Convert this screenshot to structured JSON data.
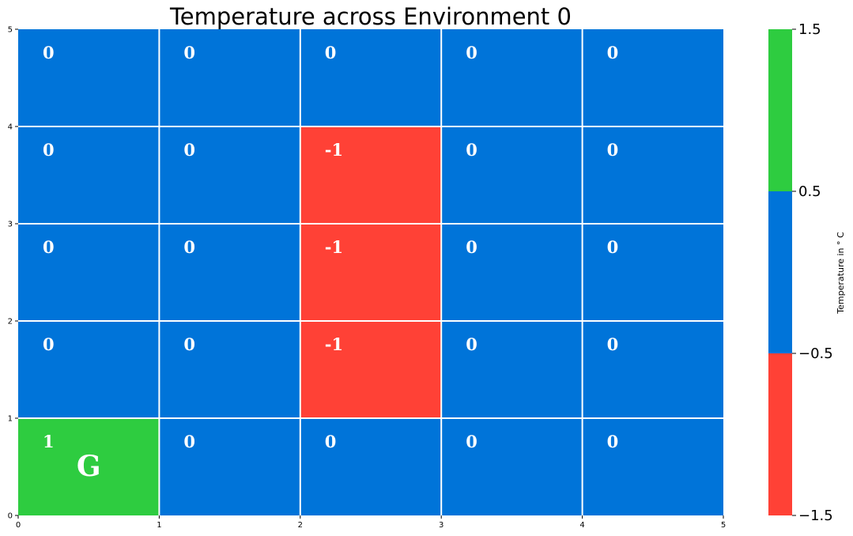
{
  "chart_data": {
    "type": "heatmap",
    "title": "Temperature across Environment 0",
    "xlim": [
      0,
      5
    ],
    "ylim": [
      0,
      5
    ],
    "x_ticks": [
      "0",
      "1",
      "2",
      "3",
      "4",
      "5"
    ],
    "y_ticks": [
      "0",
      "1",
      "2",
      "3",
      "4",
      "5"
    ],
    "grid": true,
    "rows_top_to_bottom": [
      [
        "0",
        "0",
        "0",
        "0",
        "0"
      ],
      [
        "0",
        "0",
        "-1",
        "0",
        "0"
      ],
      [
        "0",
        "0",
        "-1",
        "0",
        "0"
      ],
      [
        "0",
        "0",
        "-1",
        "0",
        "0"
      ],
      [
        "1",
        "0",
        "0",
        "0",
        "0"
      ]
    ],
    "goal": {
      "label": "G",
      "row_from_top": 4,
      "col": 0
    },
    "colorbar": {
      "label": "Temperature in $^\\circ$C",
      "label_display": "Temperature in ° C",
      "range": [
        -1.5,
        1.5
      ],
      "boundaries": [
        -1.5,
        -0.5,
        0.5,
        1.5
      ],
      "tick_labels": [
        "−1.5",
        "−0.5",
        "0.5",
        "1.5"
      ],
      "colors": [
        "#ff4136",
        "#0074d9",
        "#2ecc40"
      ]
    }
  }
}
